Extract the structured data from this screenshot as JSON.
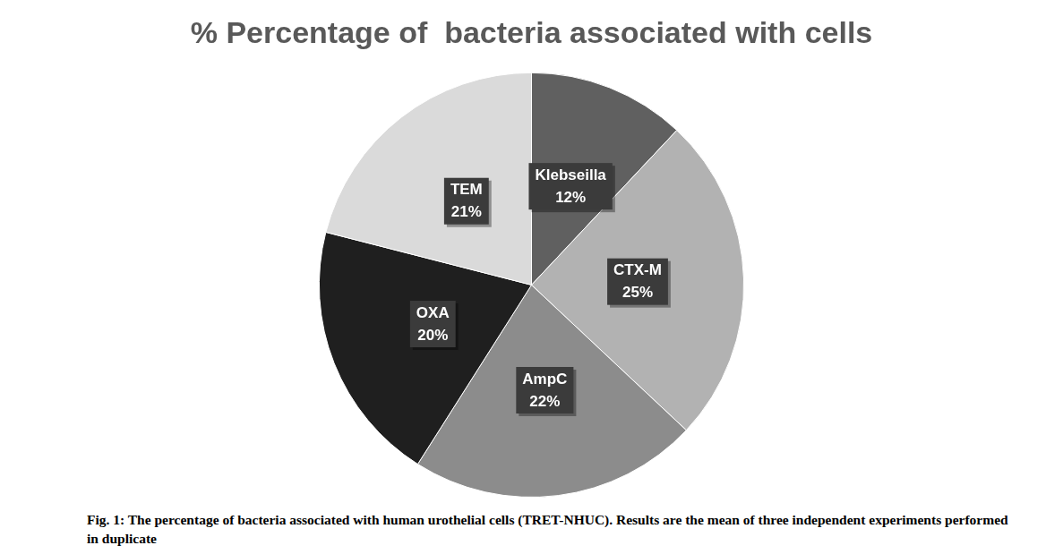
{
  "chart_data": {
    "type": "pie",
    "title": "% Percentage of  bacteria associated with cells",
    "caption": "Fig. 1: The percentage of bacteria associated with human urothelial cells (TRET-NHUC). Results are the mean of three independent experiments performed in duplicate",
    "categories": [
      "Klebseilla",
      "CTX-M",
      "AmpC",
      "OXA",
      "TEM"
    ],
    "values": [
      12,
      25,
      22,
      20,
      21
    ],
    "value_labels": [
      "12%",
      "25%",
      "22%",
      "20%",
      "21%"
    ],
    "colors": [
      "#606060",
      "#b2b2b2",
      "#8c8c8c",
      "#1f1f1f",
      "#dadada"
    ],
    "data_labels": true
  }
}
